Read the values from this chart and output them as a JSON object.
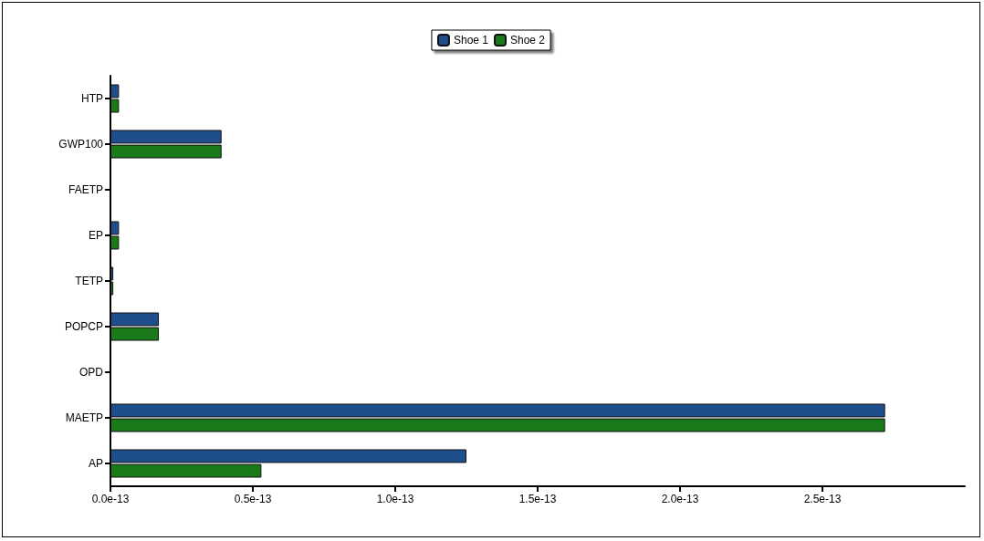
{
  "chart_data": {
    "type": "bar",
    "orientation": "horizontal",
    "categories": [
      "HTP",
      "GWP100",
      "FAETP",
      "EP",
      "TETP",
      "POPCP",
      "OPD",
      "MAETP",
      "AP"
    ],
    "series": [
      {
        "name": "Shoe 1",
        "color": "#1f4e8c",
        "values": [
          3e-15,
          3.9e-14,
          0,
          3e-15,
          1e-15,
          1.7e-14,
          0,
          2.72e-13,
          1.25e-13
        ]
      },
      {
        "name": "Shoe 2",
        "color": "#1a7a1a",
        "values": [
          3e-15,
          3.9e-14,
          0,
          3e-15,
          1e-15,
          1.7e-14,
          0,
          2.72e-13,
          5.3e-14
        ]
      }
    ],
    "xlim": [
      0,
      3e-13
    ],
    "xticks": [
      {
        "value": 0,
        "label": "0.0e-13"
      },
      {
        "value": 5e-14,
        "label": "0.5e-13"
      },
      {
        "value": 1e-13,
        "label": "1.0e-13"
      },
      {
        "value": 1.5e-13,
        "label": "1.5e-13"
      },
      {
        "value": 2e-13,
        "label": "2.0e-13"
      },
      {
        "value": 2.5e-13,
        "label": "2.5e-13"
      }
    ],
    "grid": false,
    "legend": "top"
  }
}
